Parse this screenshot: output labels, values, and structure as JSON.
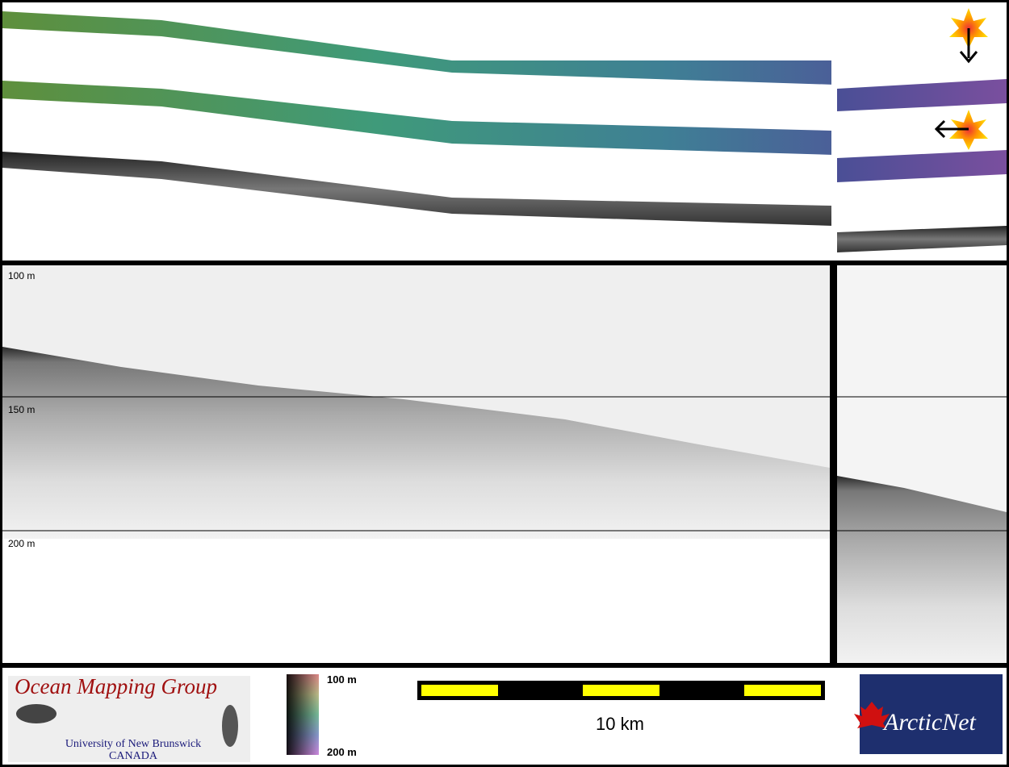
{
  "profile": {
    "depth_labels": [
      "100 m",
      "150 m",
      "200 m"
    ]
  },
  "logos": {
    "omg": {
      "title": "Ocean Mapping Group",
      "university": "University of New Brunswick",
      "country": "CANADA"
    },
    "arcticnet": "ArcticNet"
  },
  "colorbar": {
    "top": "100 m",
    "bottom": "200 m"
  },
  "scale_bar": {
    "label": "10 km"
  }
}
